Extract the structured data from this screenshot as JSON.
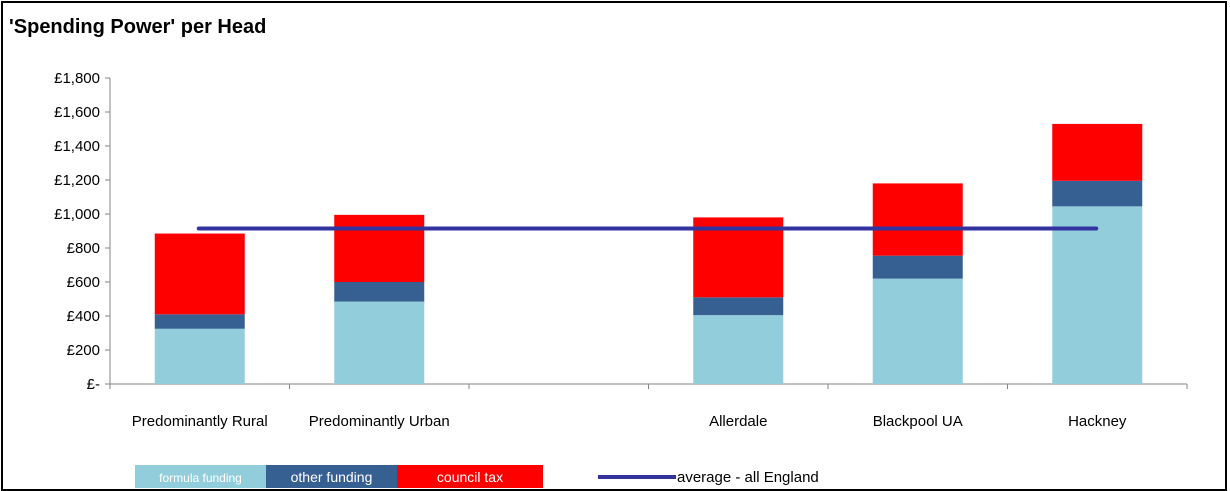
{
  "chart_data": {
    "type": "bar",
    "stacked": true,
    "title": "'Spending Power' per Head",
    "xlabel": "",
    "ylabel": "",
    "ylim": [
      0,
      1800
    ],
    "yticks": [
      "£-",
      "£200",
      "£400",
      "£600",
      "£800",
      "£1,000",
      "£1,200",
      "£1,400",
      "£1,600",
      "£1,800"
    ],
    "categories": [
      "Predominantly Rural",
      "Predominantly Urban",
      "",
      "Allerdale",
      "Blackpool UA",
      "Hackney"
    ],
    "series": [
      {
        "name": "formula funding",
        "color": "#92CDDC",
        "values": [
          325,
          485,
          null,
          405,
          620,
          1045
        ]
      },
      {
        "name": "other funding",
        "color": "#366092",
        "values": [
          85,
          115,
          null,
          105,
          135,
          150
        ]
      },
      {
        "name": "council tax",
        "color": "#FF0000",
        "values": [
          475,
          395,
          null,
          470,
          425,
          335
        ]
      }
    ],
    "reference_line": {
      "name": "average - all England",
      "value": 915,
      "color": "#3333A0"
    },
    "legend_position": "bottom",
    "grid": false
  }
}
